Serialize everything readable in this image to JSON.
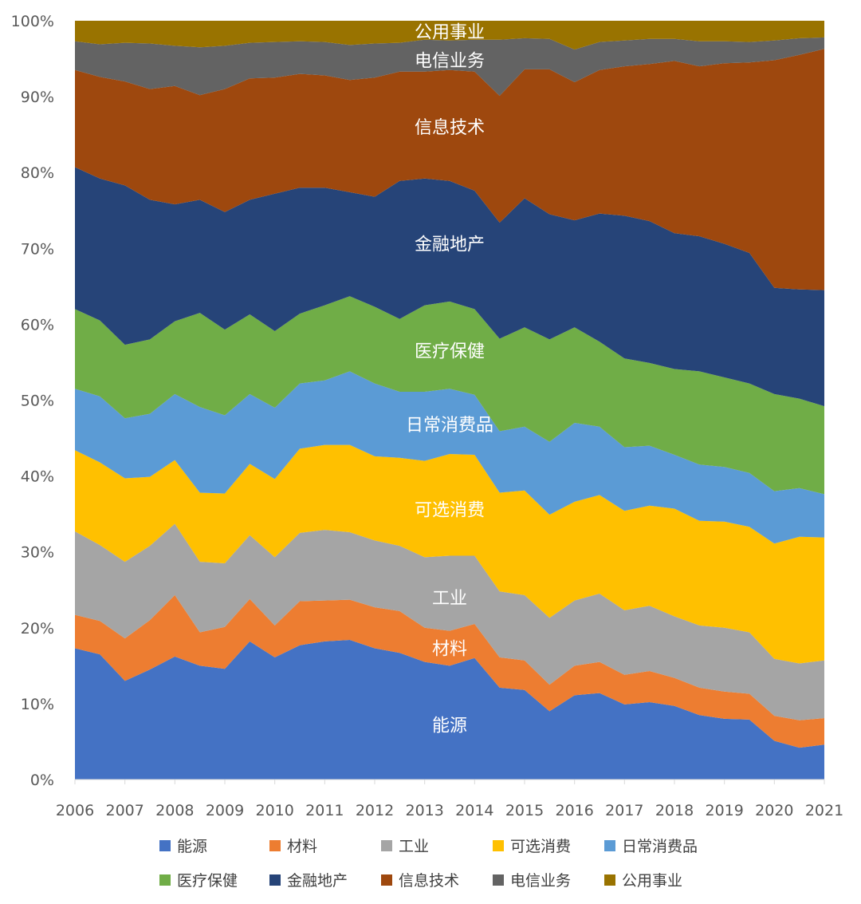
{
  "chart_data": {
    "type": "area",
    "stacked": true,
    "normalized": true,
    "title": "",
    "xlabel": "",
    "ylabel": "",
    "x": [
      2006,
      2006.5,
      2007,
      2007.5,
      2008,
      2008.5,
      2009,
      2009.5,
      2010,
      2010.5,
      2011,
      2011.5,
      2012,
      2012.5,
      2013,
      2013.5,
      2014,
      2014.5,
      2015,
      2015.5,
      2016,
      2016.5,
      2017,
      2017.5,
      2018,
      2018.5,
      2019,
      2019.5,
      2020,
      2020.5,
      2021
    ],
    "x_ticks": [
      "2006",
      "2007",
      "2008",
      "2009",
      "2010",
      "2011",
      "2012",
      "2013",
      "2014",
      "2015",
      "2016",
      "2017",
      "2018",
      "2019",
      "2020",
      "2021"
    ],
    "y_ticks": [
      "0%",
      "10%",
      "20%",
      "30%",
      "40%",
      "50%",
      "60%",
      "70%",
      "80%",
      "90%",
      "100%"
    ],
    "ylim": [
      0,
      100
    ],
    "grid": false,
    "legend_position": "bottom",
    "cumulative_boundaries": [
      [
        17.3,
        16.5,
        13.0,
        14.5,
        16.2,
        15.0,
        14.6,
        18.2,
        16.1,
        17.7,
        18.2,
        18.4,
        17.3,
        16.7,
        15.5,
        15.0,
        16.0,
        12.1,
        11.8,
        9.0,
        11.1,
        11.4,
        9.9,
        10.2,
        9.7,
        8.5,
        8.0,
        7.9,
        5.1,
        4.2,
        4.6
      ],
      [
        21.7,
        20.9,
        18.6,
        21.0,
        24.3,
        19.4,
        20.1,
        23.8,
        20.3,
        23.5,
        23.6,
        23.7,
        22.7,
        22.2,
        20.0,
        19.6,
        20.5,
        16.1,
        15.7,
        12.5,
        15.0,
        15.5,
        13.8,
        14.3,
        13.4,
        12.1,
        11.6,
        11.3,
        8.4,
        7.8,
        8.1
      ],
      [
        32.7,
        30.9,
        28.7,
        30.8,
        33.7,
        28.7,
        28.5,
        32.2,
        29.3,
        32.5,
        32.9,
        32.6,
        31.5,
        30.8,
        29.3,
        29.5,
        29.5,
        24.8,
        24.3,
        21.3,
        23.6,
        24.5,
        22.3,
        22.9,
        21.5,
        20.3,
        20.0,
        19.4,
        15.9,
        15.3,
        15.7
      ],
      [
        43.4,
        41.8,
        39.7,
        39.9,
        42.1,
        37.8,
        37.7,
        41.6,
        39.6,
        43.6,
        44.1,
        44.1,
        42.6,
        42.4,
        42.0,
        42.9,
        42.8,
        37.8,
        38.1,
        34.9,
        36.6,
        37.5,
        35.4,
        36.1,
        35.7,
        34.1,
        34.0,
        33.3,
        31.1,
        32.0,
        31.9
      ],
      [
        51.5,
        50.5,
        47.6,
        48.2,
        50.8,
        49.1,
        48.0,
        50.8,
        49.0,
        52.2,
        52.6,
        53.8,
        52.2,
        51.1,
        51.1,
        51.5,
        50.7,
        45.9,
        46.5,
        44.5,
        47.0,
        46.5,
        43.8,
        44.0,
        42.8,
        41.5,
        41.2,
        40.4,
        38.0,
        38.4,
        37.6
      ],
      [
        62.0,
        60.5,
        57.3,
        58.0,
        60.4,
        61.5,
        59.3,
        61.3,
        59.1,
        61.4,
        62.5,
        63.7,
        62.3,
        60.7,
        62.5,
        63.0,
        62.0,
        58.1,
        59.6,
        58.0,
        59.6,
        57.7,
        55.5,
        54.9,
        54.1,
        53.8,
        53.0,
        52.2,
        50.8,
        50.2,
        49.2
      ],
      [
        80.7,
        79.2,
        78.3,
        76.4,
        75.8,
        76.4,
        74.8,
        76.4,
        77.2,
        78.0,
        78.0,
        77.4,
        76.8,
        78.9,
        79.2,
        78.9,
        77.6,
        73.4,
        76.6,
        74.5,
        73.7,
        74.6,
        74.3,
        73.6,
        72.0,
        71.6,
        70.6,
        69.4,
        64.8,
        64.6,
        64.5
      ],
      [
        93.5,
        92.6,
        92.0,
        91.0,
        91.4,
        90.2,
        91.0,
        92.4,
        92.5,
        93.0,
        92.8,
        92.2,
        92.5,
        93.3,
        93.3,
        93.5,
        93.3,
        90.1,
        93.6,
        93.6,
        91.9,
        93.5,
        94.0,
        94.3,
        94.7,
        94.0,
        94.4,
        94.5,
        94.8,
        95.5,
        96.3
      ],
      [
        97.3,
        96.9,
        97.1,
        97.0,
        96.7,
        96.5,
        96.7,
        97.1,
        97.2,
        97.3,
        97.2,
        96.8,
        97.0,
        97.1,
        97.5,
        97.4,
        97.5,
        97.5,
        97.7,
        97.6,
        96.2,
        97.2,
        97.4,
        97.6,
        97.6,
        97.3,
        97.3,
        97.2,
        97.4,
        97.7,
        97.8
      ],
      [
        100,
        100,
        100,
        100,
        100,
        100,
        100,
        100,
        100,
        100,
        100,
        100,
        100,
        100,
        100,
        100,
        100,
        100,
        100,
        100,
        100,
        100,
        100,
        100,
        100,
        100,
        100,
        100,
        100,
        100,
        100
      ]
    ],
    "series": [
      {
        "name": "能源",
        "color": "#4472C4"
      },
      {
        "name": "材料",
        "color": "#ED7D31"
      },
      {
        "name": "工业",
        "color": "#A5A5A5"
      },
      {
        "name": "可选消费",
        "color": "#FFC000"
      },
      {
        "name": "日常消费品",
        "color": "#5B9BD5"
      },
      {
        "name": "医疗保健",
        "color": "#70AD47"
      },
      {
        "name": "金融地产",
        "color": "#264478"
      },
      {
        "name": "信息技术",
        "color": "#9E480E"
      },
      {
        "name": "电信业务",
        "color": "#636363"
      },
      {
        "name": "公用事业",
        "color": "#997300"
      }
    ],
    "area_labels": [
      {
        "text": "能源",
        "x": 2013.5,
        "y": 7.2
      },
      {
        "text": "材料",
        "x": 2013.5,
        "y": 17.3
      },
      {
        "text": "工业",
        "x": 2013.5,
        "y": 24.0
      },
      {
        "text": "可选消费",
        "x": 2013.5,
        "y": 35.6
      },
      {
        "text": "日常消费品",
        "x": 2013.5,
        "y": 46.8
      },
      {
        "text": "医疗保健",
        "x": 2013.5,
        "y": 56.5
      },
      {
        "text": "金融地产",
        "x": 2013.5,
        "y": 70.6
      },
      {
        "text": "信息技术",
        "x": 2013.5,
        "y": 86.0
      },
      {
        "text": "电信业务",
        "x": 2013.5,
        "y": 94.8
      },
      {
        "text": "公用事业",
        "x": 2013.5,
        "y": 98.6
      }
    ]
  }
}
